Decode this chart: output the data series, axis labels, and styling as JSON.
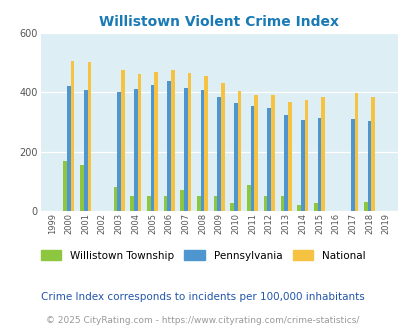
{
  "title": "Willistown Violent Crime Index",
  "years": [
    1999,
    2000,
    2001,
    2002,
    2003,
    2004,
    2005,
    2006,
    2007,
    2008,
    2009,
    2010,
    2011,
    2012,
    2013,
    2014,
    2015,
    2016,
    2017,
    2018,
    2019
  ],
  "willistown": [
    0,
    170,
    155,
    0,
    80,
    52,
    52,
    50,
    72,
    52,
    52,
    28,
    88,
    52,
    52,
    20,
    28,
    0,
    0,
    30,
    0
  ],
  "pennsylvania": [
    0,
    422,
    408,
    0,
    400,
    410,
    425,
    438,
    415,
    408,
    383,
    365,
    355,
    348,
    325,
    308,
    315,
    0,
    310,
    303,
    0
  ],
  "national": [
    0,
    507,
    504,
    0,
    474,
    462,
    470,
    474,
    465,
    455,
    430,
    405,
    390,
    390,
    368,
    376,
    383,
    0,
    398,
    383,
    0
  ],
  "bar_width": 0.22,
  "color_willistown": "#8dc63f",
  "color_pennsylvania": "#4f96d0",
  "color_national": "#f5c242",
  "plot_bg": "#ddeef4",
  "ylim": [
    0,
    600
  ],
  "yticks": [
    0,
    200,
    400,
    600
  ],
  "subtitle": "Crime Index corresponds to incidents per 100,000 inhabitants",
  "footer": "© 2025 CityRating.com - https://www.cityrating.com/crime-statistics/",
  "legend_labels": [
    "Willistown Township",
    "Pennsylvania",
    "National"
  ],
  "title_color": "#1a7ab5",
  "subtitle_color": "#2255aa",
  "footer_color": "#999999"
}
